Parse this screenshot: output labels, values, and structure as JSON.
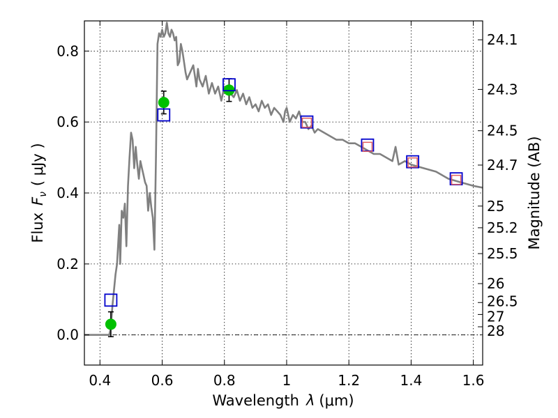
{
  "chart_data": {
    "type": "scatter",
    "xlabel_text": "Wavelength",
    "xlabel_unit": "(μm)",
    "ylabel_text": "Flux",
    "ylabel_unit": "( μJy )",
    "y2label": "Magnitude (AB)",
    "xlim": [
      0.35,
      1.63
    ],
    "ylim": [
      -0.085,
      0.885
    ],
    "x_ticks": [
      0.4,
      0.6,
      0.8,
      1.0,
      1.2,
      1.4,
      1.6
    ],
    "x_tick_labels": [
      "0.4",
      "0.6",
      "0.8",
      "1",
      "1.2",
      "1.4",
      "1.6"
    ],
    "y_ticks": [
      0.0,
      0.2,
      0.4,
      0.6,
      0.8
    ],
    "y_tick_labels": [
      "0.0",
      "0.2",
      "0.4",
      "0.6",
      "0.8"
    ],
    "mag_ticks": [
      "24.1",
      "24.3",
      "24.5",
      "24.7",
      "25",
      "25.2",
      "25.5",
      "26",
      "26.5",
      "27",
      "28"
    ],
    "grid": true,
    "zero_line": true,
    "series": [
      {
        "kind": "model-spectrum",
        "color": "#808080",
        "x": [
          0.35,
          0.43,
          0.435,
          0.44,
          0.45,
          0.455,
          0.46,
          0.462,
          0.465,
          0.47,
          0.475,
          0.48,
          0.485,
          0.49,
          0.495,
          0.5,
          0.505,
          0.51,
          0.515,
          0.52,
          0.525,
          0.53,
          0.535,
          0.54,
          0.545,
          0.55,
          0.555,
          0.56,
          0.565,
          0.57,
          0.575,
          0.58,
          0.585,
          0.59,
          0.595,
          0.6,
          0.605,
          0.61,
          0.615,
          0.62,
          0.625,
          0.63,
          0.635,
          0.64,
          0.645,
          0.65,
          0.655,
          0.66,
          0.665,
          0.67,
          0.675,
          0.68,
          0.69,
          0.7,
          0.705,
          0.71,
          0.715,
          0.72,
          0.73,
          0.74,
          0.75,
          0.76,
          0.77,
          0.78,
          0.79,
          0.8,
          0.81,
          0.82,
          0.83,
          0.84,
          0.85,
          0.86,
          0.87,
          0.88,
          0.89,
          0.9,
          0.91,
          0.92,
          0.93,
          0.94,
          0.95,
          0.96,
          0.97,
          0.98,
          0.99,
          0.995,
          1.0,
          1.01,
          1.02,
          1.03,
          1.04,
          1.05,
          1.06,
          1.07,
          1.08,
          1.09,
          1.1,
          1.12,
          1.14,
          1.16,
          1.18,
          1.2,
          1.22,
          1.24,
          1.26,
          1.28,
          1.3,
          1.32,
          1.34,
          1.35,
          1.36,
          1.38,
          1.4,
          1.44,
          1.48,
          1.52,
          1.56,
          1.6,
          1.63
        ],
        "y": [
          0.0,
          0.0,
          0.02,
          0.08,
          0.17,
          0.2,
          0.28,
          0.31,
          0.2,
          0.35,
          0.33,
          0.37,
          0.25,
          0.42,
          0.5,
          0.57,
          0.55,
          0.47,
          0.53,
          0.48,
          0.44,
          0.49,
          0.47,
          0.45,
          0.43,
          0.42,
          0.35,
          0.4,
          0.36,
          0.33,
          0.24,
          0.5,
          0.82,
          0.85,
          0.84,
          0.86,
          0.84,
          0.85,
          0.88,
          0.85,
          0.84,
          0.86,
          0.85,
          0.83,
          0.84,
          0.76,
          0.77,
          0.82,
          0.8,
          0.77,
          0.74,
          0.72,
          0.74,
          0.76,
          0.73,
          0.7,
          0.75,
          0.72,
          0.7,
          0.73,
          0.68,
          0.71,
          0.68,
          0.7,
          0.66,
          0.7,
          0.69,
          0.68,
          0.67,
          0.69,
          0.66,
          0.68,
          0.65,
          0.67,
          0.64,
          0.65,
          0.63,
          0.66,
          0.64,
          0.65,
          0.62,
          0.64,
          0.63,
          0.62,
          0.6,
          0.63,
          0.64,
          0.6,
          0.62,
          0.61,
          0.63,
          0.6,
          0.6,
          0.58,
          0.59,
          0.57,
          0.58,
          0.57,
          0.56,
          0.55,
          0.55,
          0.54,
          0.54,
          0.53,
          0.52,
          0.51,
          0.51,
          0.5,
          0.49,
          0.53,
          0.48,
          0.49,
          0.48,
          0.47,
          0.46,
          0.44,
          0.43,
          0.42,
          0.415
        ]
      },
      {
        "kind": "observed-flux",
        "color": "#00c000",
        "x": [
          0.435,
          0.605,
          0.815
        ],
        "y": [
          0.03,
          0.655,
          0.69
        ],
        "yerr": [
          0.035,
          0.032,
          0.032
        ]
      },
      {
        "kind": "model-photometry-blue-square",
        "color": "#0000cc",
        "x": [
          0.435,
          0.605,
          0.815,
          1.065,
          1.26,
          1.405,
          1.545
        ],
        "y": [
          0.098,
          0.62,
          0.705,
          0.6,
          0.535,
          0.488,
          0.44
        ]
      },
      {
        "kind": "model-photometry-red-square",
        "color": "#e06060",
        "x": [
          1.065,
          1.26,
          1.405,
          1.545
        ],
        "y": [
          0.598,
          0.53,
          0.486,
          0.437
        ]
      }
    ]
  }
}
